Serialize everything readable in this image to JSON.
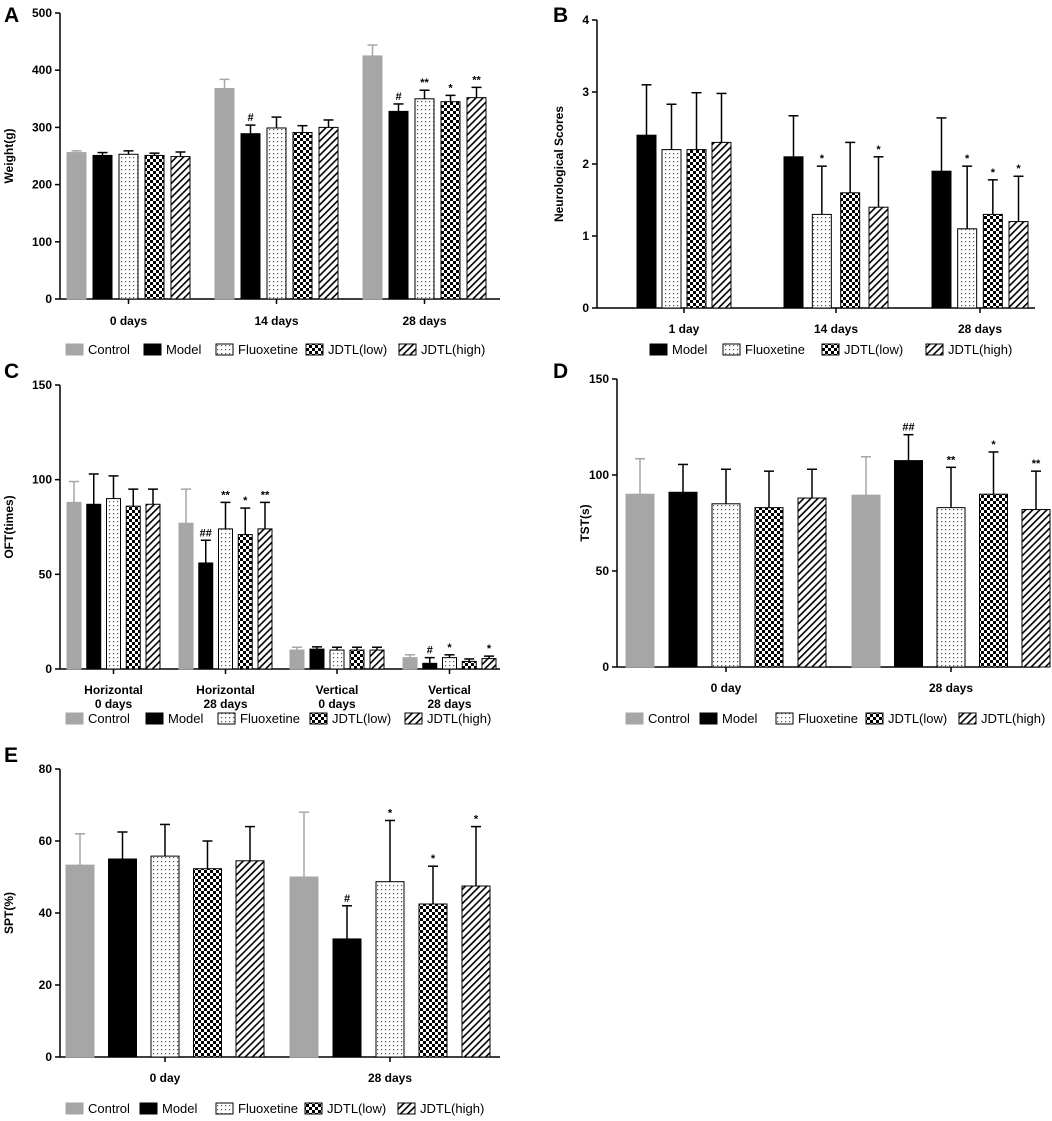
{
  "colors": {
    "Control": "#a6a6a6",
    "Model": "#000000",
    "Fluoxetine": "dots",
    "JDTL(low)": "checker",
    "JDTL(high)": "hatch"
  },
  "chart_data": [
    {
      "type": "bar",
      "panel": "A",
      "ylabel": "Weight(g)",
      "ylim": [
        0,
        500
      ],
      "yticks": [
        0,
        100,
        200,
        300,
        400,
        500
      ],
      "categories": [
        "0 days",
        "14 days",
        "28 days"
      ],
      "legend": [
        "Control",
        "Model",
        "Fluoxetine",
        "JDTL(low)",
        "JDTL(high)"
      ],
      "series": [
        {
          "name": "Control",
          "values": [
            256,
            368,
            425
          ],
          "errors": [
            3,
            16,
            19
          ],
          "sig": [
            "",
            "",
            ""
          ]
        },
        {
          "name": "Model",
          "values": [
            251,
            289,
            328
          ],
          "errors": [
            5,
            15,
            13
          ],
          "sig": [
            "",
            "#",
            "#"
          ]
        },
        {
          "name": "Fluoxetine",
          "values": [
            253,
            299,
            350
          ],
          "errors": [
            6,
            19,
            15
          ],
          "sig": [
            "",
            "",
            "**"
          ]
        },
        {
          "name": "JDTL(low)",
          "values": [
            251,
            291,
            345
          ],
          "errors": [
            4,
            12,
            11
          ],
          "sig": [
            "",
            "",
            "*"
          ]
        },
        {
          "name": "JDTL(high)",
          "values": [
            249,
            300,
            352
          ],
          "errors": [
            8,
            13,
            18
          ],
          "sig": [
            "",
            "",
            "**"
          ]
        }
      ]
    },
    {
      "type": "bar",
      "panel": "B",
      "ylabel": "Neurological Scores",
      "ylim": [
        0,
        4
      ],
      "yticks": [
        0,
        1,
        2,
        3,
        4
      ],
      "categories": [
        "1 day",
        "14 days",
        "28 days"
      ],
      "legend": [
        "Model",
        "Fluoxetine",
        "JDTL(low)",
        "JDTL(high)"
      ],
      "series": [
        {
          "name": "Model",
          "values": [
            2.4,
            2.1,
            1.9
          ],
          "errors": [
            0.7,
            0.57,
            0.74
          ],
          "sig": [
            "",
            "",
            ""
          ]
        },
        {
          "name": "Fluoxetine",
          "values": [
            2.2,
            1.3,
            1.1
          ],
          "errors": [
            0.63,
            0.67,
            0.87
          ],
          "sig": [
            "",
            "*",
            "*"
          ]
        },
        {
          "name": "JDTL(low)",
          "values": [
            2.2,
            1.6,
            1.3
          ],
          "errors": [
            0.79,
            0.7,
            0.48
          ],
          "sig": [
            "",
            "",
            "*"
          ]
        },
        {
          "name": "JDTL(high)",
          "values": [
            2.3,
            1.4,
            1.2
          ],
          "errors": [
            0.68,
            0.7,
            0.63
          ],
          "sig": [
            "",
            "*",
            "*"
          ]
        }
      ]
    },
    {
      "type": "bar",
      "panel": "C",
      "ylabel": "OFT(times)",
      "ylim": [
        0,
        150
      ],
      "yticks": [
        0,
        50,
        100,
        150
      ],
      "categories": [
        [
          "Horizontal",
          "0 days"
        ],
        [
          "Horizontal",
          "28 days"
        ],
        [
          "Vertical",
          "0 days"
        ],
        [
          "Vertical",
          "28 days"
        ]
      ],
      "legend": [
        "Control",
        "Model",
        "Fluoxetine",
        "JDTL(low)",
        "JDTL(high)"
      ],
      "series": [
        {
          "name": "Control",
          "values": [
            88,
            77,
            10,
            6
          ],
          "errors": [
            11,
            18,
            1.5,
            1.5
          ],
          "sig": [
            "",
            "",
            "",
            ""
          ]
        },
        {
          "name": "Model",
          "values": [
            87,
            56,
            10.5,
            3
          ],
          "errors": [
            16,
            12,
            1.2,
            3
          ],
          "sig": [
            "",
            "##",
            "",
            "#"
          ]
        },
        {
          "name": "Fluoxetine",
          "values": [
            90,
            74,
            10,
            6
          ],
          "errors": [
            12,
            14,
            1.5,
            1.5
          ],
          "sig": [
            "",
            "**",
            "",
            "*"
          ]
        },
        {
          "name": "JDTL(low)",
          "values": [
            86,
            71,
            10,
            4
          ],
          "errors": [
            9,
            14,
            1.5,
            1.3
          ],
          "sig": [
            "",
            "*",
            "",
            ""
          ]
        },
        {
          "name": "JDTL(high)",
          "values": [
            87,
            74,
            10,
            5.5
          ],
          "errors": [
            8,
            14,
            1.5,
            1.3
          ],
          "sig": [
            "",
            "**",
            "",
            "*"
          ]
        }
      ]
    },
    {
      "type": "bar",
      "panel": "D",
      "ylabel": "TST(s)",
      "ylim": [
        0,
        150
      ],
      "yticks": [
        0,
        50,
        100,
        150
      ],
      "categories": [
        "0 day",
        "28 days"
      ],
      "legend": [
        "Control",
        "Model",
        "Fluoxetine",
        "JDTL(low)",
        "JDTL(high)"
      ],
      "series": [
        {
          "name": "Control",
          "values": [
            90,
            89.5
          ],
          "errors": [
            18.5,
            20
          ],
          "sig": [
            "",
            ""
          ]
        },
        {
          "name": "Model",
          "values": [
            91,
            107.5
          ],
          "errors": [
            14.5,
            13.5
          ],
          "sig": [
            "",
            "##"
          ]
        },
        {
          "name": "Fluoxetine",
          "values": [
            85,
            83
          ],
          "errors": [
            18,
            21
          ],
          "sig": [
            "",
            "**"
          ]
        },
        {
          "name": "JDTL(low)",
          "values": [
            83,
            90
          ],
          "errors": [
            19,
            22
          ],
          "sig": [
            "",
            "*"
          ]
        },
        {
          "name": "JDTL(high)",
          "values": [
            88,
            82
          ],
          "errors": [
            15,
            20
          ],
          "sig": [
            "",
            "**"
          ]
        }
      ]
    },
    {
      "type": "bar",
      "panel": "E",
      "ylabel": "SPT(%)",
      "ylim": [
        0,
        80
      ],
      "yticks": [
        0,
        20,
        40,
        60,
        80
      ],
      "categories": [
        "0 day",
        "28 days"
      ],
      "legend": [
        "Control",
        "Model",
        "Fluoxetine",
        "JDTL(low)",
        "JDTL(high)"
      ],
      "series": [
        {
          "name": "Control",
          "values": [
            53.3,
            50
          ],
          "errors": [
            8.7,
            18
          ],
          "sig": [
            "",
            ""
          ]
        },
        {
          "name": "Model",
          "values": [
            55,
            32.8
          ],
          "errors": [
            7.5,
            9.2
          ],
          "sig": [
            "",
            "#"
          ]
        },
        {
          "name": "Fluoxetine",
          "values": [
            55.8,
            48.7
          ],
          "errors": [
            8.8,
            17
          ],
          "sig": [
            "",
            "*"
          ]
        },
        {
          "name": "JDTL(low)",
          "values": [
            52.3,
            42.5
          ],
          "errors": [
            7.7,
            10.5
          ],
          "sig": [
            "",
            "*"
          ]
        },
        {
          "name": "JDTL(high)",
          "values": [
            54.5,
            47.5
          ],
          "errors": [
            9.5,
            16.5
          ],
          "sig": [
            "",
            "*"
          ]
        }
      ]
    }
  ]
}
